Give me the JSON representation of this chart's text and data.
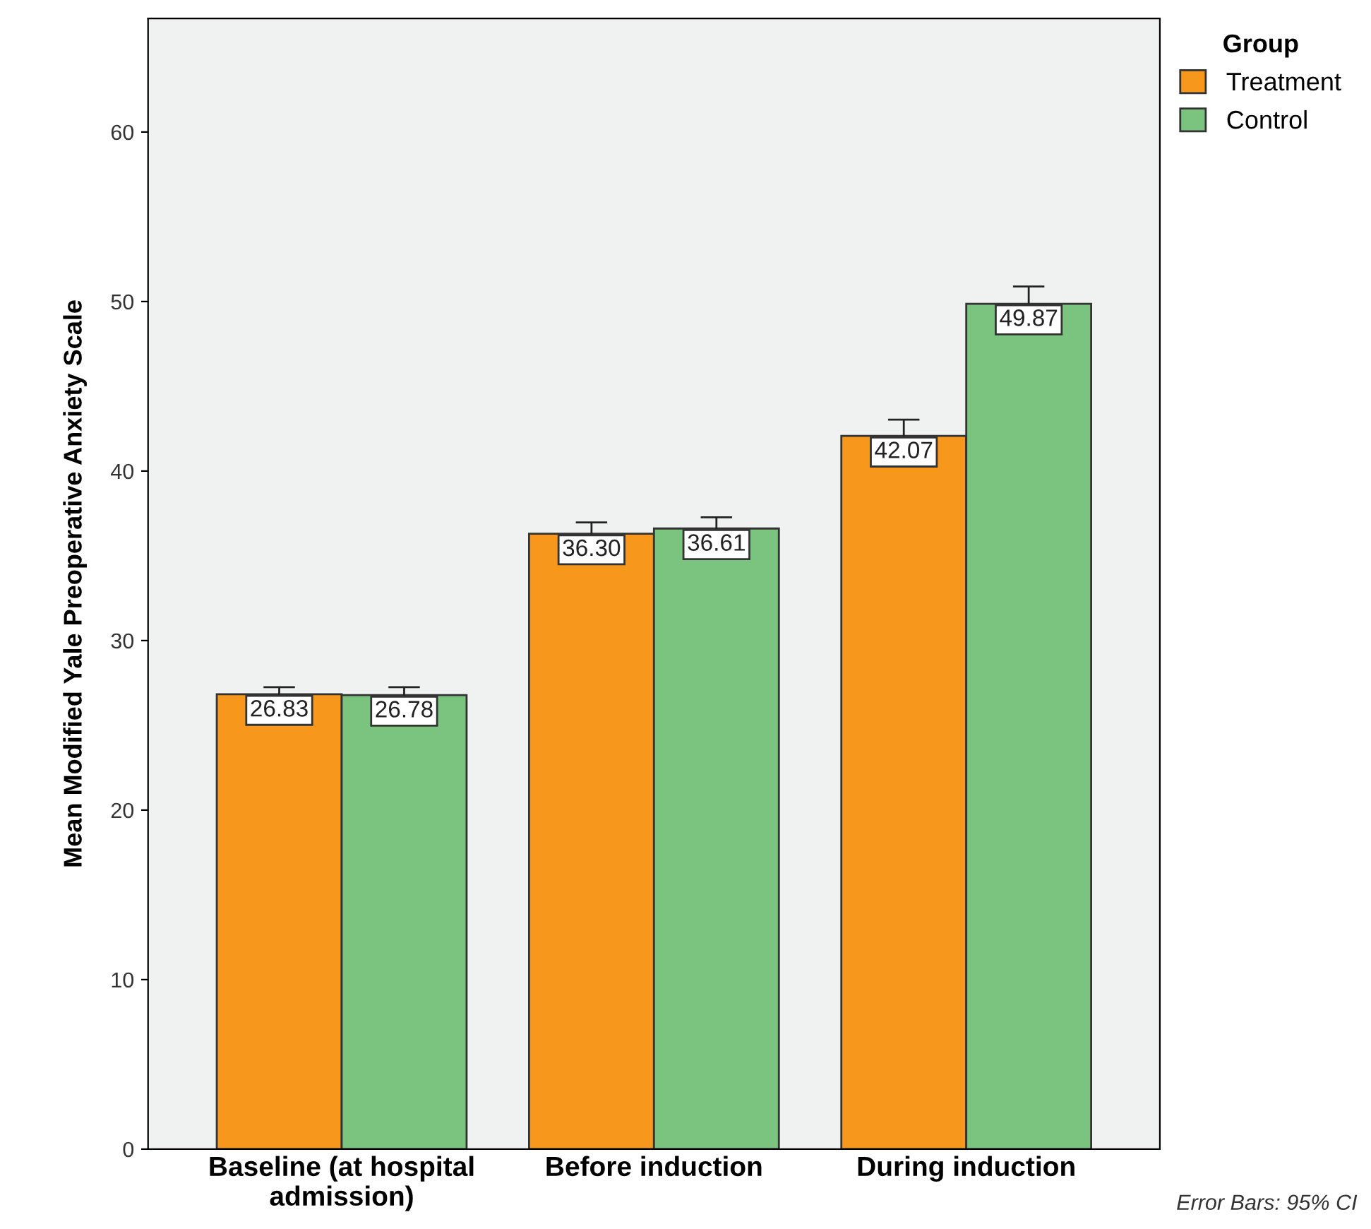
{
  "chart_data": {
    "type": "bar",
    "categories": [
      "Baseline (at hospital\nadmission)",
      "Before induction",
      "During induction"
    ],
    "series": [
      {
        "name": "Treatment",
        "color": "#f7981d",
        "values": [
          26.83,
          36.3,
          42.07
        ],
        "value_labels": [
          "26.83",
          "36.30",
          "42.07"
        ],
        "errors": [
          0.42,
          0.67,
          0.96
        ]
      },
      {
        "name": "Control",
        "color": "#7ac47f",
        "values": [
          26.78,
          36.61,
          49.87
        ],
        "value_labels": [
          "26.78",
          "36.61",
          "49.87"
        ],
        "errors": [
          0.47,
          0.66,
          1.02
        ]
      }
    ],
    "ylabel": "Mean Modified Yale Preoperative Anxiety Scale",
    "legend_title": "Group",
    "legend": "top right",
    "ylim": [
      0,
      66.7
    ],
    "yticks": [
      0,
      10,
      20,
      30,
      40,
      50,
      60
    ],
    "grid": false,
    "annotations": [
      "Error Bars: 95% CI"
    ]
  }
}
